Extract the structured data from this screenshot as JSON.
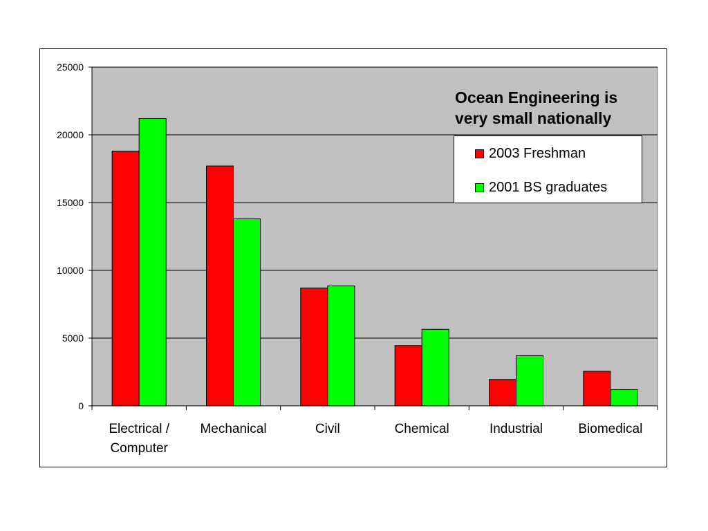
{
  "chart_data": {
    "type": "bar",
    "title": "",
    "annotation": [
      "Ocean Engineering is",
      "very small nationally"
    ],
    "xlabel": "",
    "ylabel": "",
    "categories": [
      [
        "Electrical /",
        "Computer"
      ],
      [
        "Mechanical"
      ],
      [
        "Civil"
      ],
      [
        "Chemical"
      ],
      [
        "Industrial"
      ],
      [
        "Biomedical"
      ]
    ],
    "series": [
      {
        "name": "2003 Freshman",
        "color": "#ff0000",
        "values": [
          18800,
          17700,
          8700,
          4450,
          1950,
          2550
        ]
      },
      {
        "name": "2001 BS graduates",
        "color": "#00ff00",
        "values": [
          21200,
          13800,
          8850,
          5650,
          3700,
          1200
        ]
      }
    ],
    "ylim": [
      0,
      25000
    ],
    "yticks": [
      "0",
      "5000",
      "10000",
      "15000",
      "20000",
      "25000"
    ],
    "grid": true,
    "plot_background": "#c0c0c0",
    "legend_position": "top-right"
  }
}
